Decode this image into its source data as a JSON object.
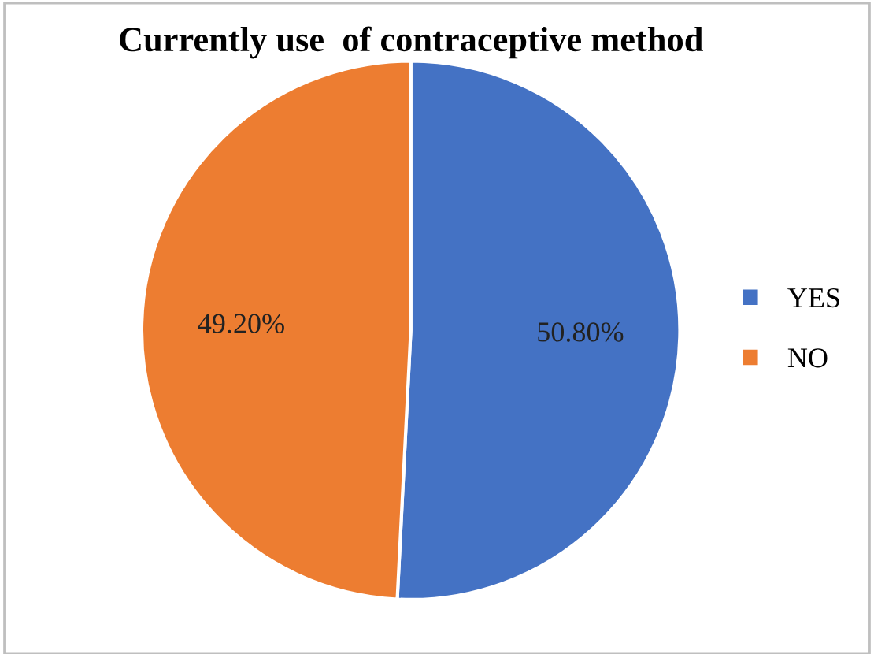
{
  "chart_data": {
    "type": "pie",
    "title": "Currently use  of contraceptive method",
    "categories": [
      "YES",
      "NO"
    ],
    "values": [
      50.8,
      49.2
    ],
    "colors": [
      "#4472c4",
      "#ed7d31"
    ],
    "value_labels": [
      "50.80%",
      "49.20%"
    ],
    "legend": "right"
  }
}
